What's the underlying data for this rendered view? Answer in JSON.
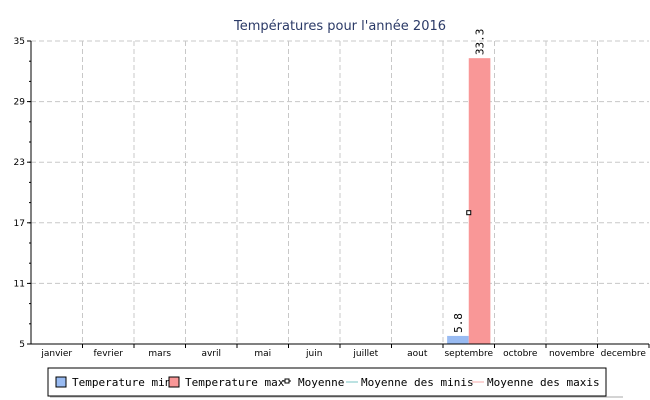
{
  "chart_data": {
    "type": "bar",
    "title": "Températures pour l'année 2016",
    "categories": [
      "janvier",
      "fevrier",
      "mars",
      "avril",
      "mai",
      "juin",
      "juillet",
      "aout",
      "septembre",
      "octobre",
      "novembre",
      "decembre"
    ],
    "series": [
      {
        "name": "Temperature min",
        "color": "#99bbf2",
        "values": [
          null,
          null,
          null,
          null,
          null,
          null,
          null,
          null,
          5.8,
          null,
          null,
          null
        ],
        "labels": [
          "",
          "",
          "",
          "",
          "",
          "",
          "",
          "",
          "5.8",
          "",
          "",
          ""
        ]
      },
      {
        "name": "Temperature max",
        "color": "#f99797",
        "values": [
          null,
          null,
          null,
          null,
          null,
          null,
          null,
          null,
          33.3,
          null,
          null,
          null
        ],
        "labels": [
          "",
          "",
          "",
          "",
          "",
          "",
          "",
          "",
          "33.3",
          "",
          "",
          ""
        ]
      }
    ],
    "lines": [
      {
        "name": "Moyenne",
        "color": "#000000",
        "marker": "square",
        "values": [
          null,
          null,
          null,
          null,
          null,
          null,
          null,
          null,
          18,
          null,
          null,
          null
        ]
      },
      {
        "name": "Moyenne des minis",
        "color": "#79c6c6"
      },
      {
        "name": "Moyenne des maxis",
        "color": "#f7a8a8"
      }
    ],
    "ylim": [
      5,
      35
    ],
    "yticks": [
      "5",
      "11",
      "17",
      "23",
      "29",
      "35"
    ],
    "grid": true,
    "legend_position": "bottom"
  }
}
